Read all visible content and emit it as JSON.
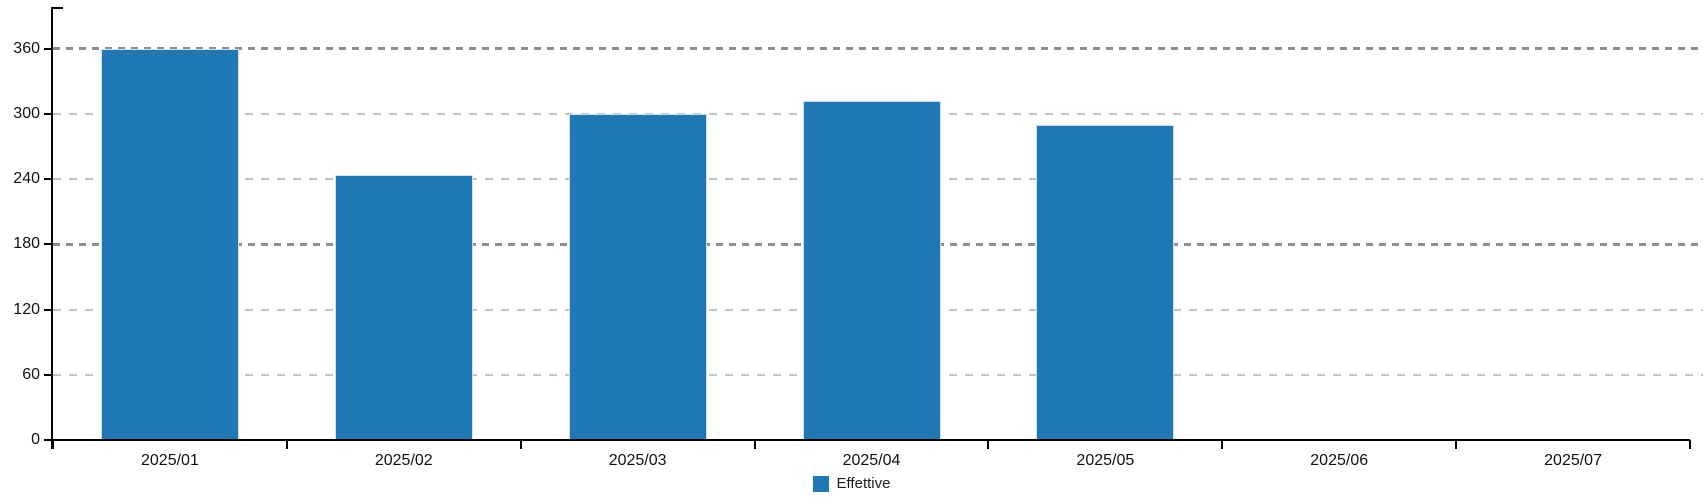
{
  "chart_data": {
    "type": "bar",
    "title": "",
    "categories": [
      "2025/01",
      "2025/02",
      "2025/03",
      "2025/04",
      "2025/05",
      "2025/06",
      "2025/07"
    ],
    "series": [
      {
        "name": "Effettive",
        "color": "#1f77b4",
        "values": [
          360,
          244,
          300,
          312,
          290,
          0,
          0
        ]
      }
    ],
    "xlabel": "",
    "ylabel": "",
    "ylim": [
      0,
      396
    ],
    "y_ticks": [
      0,
      60,
      120,
      180,
      240,
      300,
      360
    ],
    "major_gridlines": [
      180,
      360
    ],
    "minor_gridlines": [
      60,
      120,
      240,
      300
    ],
    "grid": true,
    "legend_position": "bottom-center"
  },
  "legend": {
    "items": [
      {
        "label": "Effettive",
        "color": "#1f77b4"
      }
    ]
  },
  "colors": {
    "bar_fill": "#1f77b4",
    "bar_border": "#cfe0ee",
    "axis": "#000000",
    "major_grid": "#8e8e8e",
    "minor_grid": "#c3c3c3",
    "tick_label": "#111111",
    "background": "#ffffff"
  }
}
